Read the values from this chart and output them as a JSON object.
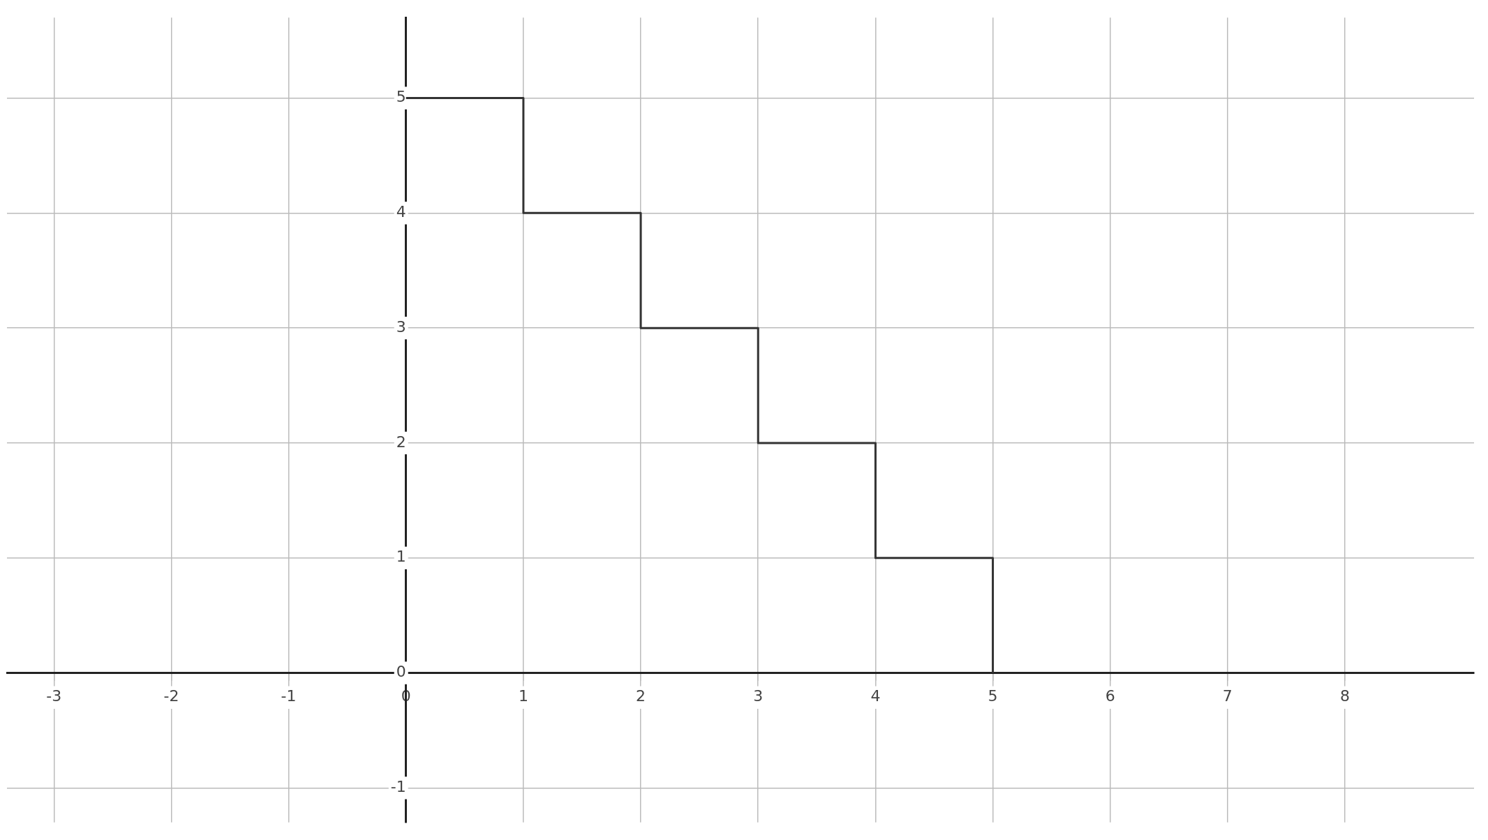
{
  "chart_data": {
    "type": "step",
    "x": [
      0,
      1,
      2,
      3,
      4,
      5
    ],
    "series": [
      {
        "color": "#333333",
        "values": [
          5,
          4,
          3,
          2,
          1,
          0
        ]
      }
    ],
    "xlim": [
      -3.4,
      9.1
    ],
    "xticks": [
      -3,
      -2,
      -1,
      0,
      1,
      2,
      3,
      4,
      5,
      6,
      7,
      8
    ],
    "ylim": [
      -1.3,
      5.7
    ],
    "yticks": [
      -1,
      0,
      1,
      2,
      3,
      4,
      5
    ],
    "grid": true,
    "legend": false,
    "marker": "none",
    "line_style": "solid"
  }
}
